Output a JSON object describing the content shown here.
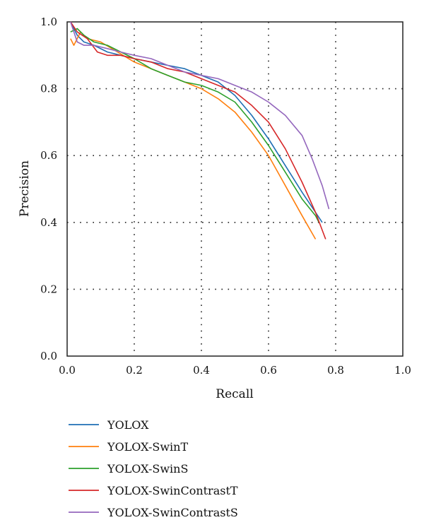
{
  "chart_data": {
    "type": "line",
    "xlabel": "Recall",
    "ylabel": "Precision",
    "xlim": [
      0.0,
      1.0
    ],
    "ylim": [
      0.0,
      1.0
    ],
    "xticks": [
      "0.0",
      "0.2",
      "0.4",
      "0.6",
      "0.8",
      "1.0"
    ],
    "yticks": [
      "0.0",
      "0.2",
      "0.4",
      "0.6",
      "0.8",
      "1.0"
    ],
    "grid": true,
    "legend_position": "bottom-left",
    "series": [
      {
        "name": "YOLOX",
        "color": "#1f6fb4",
        "x": [
          0.01,
          0.03,
          0.05,
          0.08,
          0.12,
          0.16,
          0.2,
          0.25,
          0.3,
          0.35,
          0.4,
          0.45,
          0.5,
          0.55,
          0.6,
          0.65,
          0.7,
          0.74,
          0.76
        ],
        "y": [
          1.0,
          0.96,
          0.94,
          0.93,
          0.91,
          0.9,
          0.89,
          0.88,
          0.87,
          0.86,
          0.84,
          0.82,
          0.78,
          0.72,
          0.65,
          0.57,
          0.49,
          0.43,
          0.4
        ]
      },
      {
        "name": "YOLOX-SwinT",
        "color": "#ff7f0e",
        "x": [
          0.01,
          0.02,
          0.04,
          0.06,
          0.1,
          0.15,
          0.2,
          0.25,
          0.3,
          0.35,
          0.4,
          0.45,
          0.5,
          0.55,
          0.6,
          0.65,
          0.7,
          0.74
        ],
        "y": [
          0.95,
          0.93,
          0.97,
          0.95,
          0.94,
          0.91,
          0.88,
          0.86,
          0.84,
          0.82,
          0.8,
          0.77,
          0.73,
          0.67,
          0.6,
          0.51,
          0.42,
          0.35
        ]
      },
      {
        "name": "YOLOX-SwinS",
        "color": "#2ca02c",
        "x": [
          0.01,
          0.03,
          0.05,
          0.08,
          0.12,
          0.16,
          0.2,
          0.25,
          0.3,
          0.35,
          0.4,
          0.45,
          0.5,
          0.55,
          0.6,
          0.65,
          0.7,
          0.74,
          0.75
        ],
        "y": [
          0.97,
          0.98,
          0.96,
          0.94,
          0.93,
          0.91,
          0.89,
          0.86,
          0.84,
          0.82,
          0.81,
          0.79,
          0.76,
          0.7,
          0.63,
          0.55,
          0.47,
          0.42,
          0.4
        ]
      },
      {
        "name": "YOLOX-SwinContrastT",
        "color": "#d62728",
        "x": [
          0.01,
          0.03,
          0.06,
          0.09,
          0.12,
          0.16,
          0.2,
          0.25,
          0.3,
          0.35,
          0.4,
          0.45,
          0.5,
          0.55,
          0.6,
          0.65,
          0.7,
          0.74,
          0.77
        ],
        "y": [
          1.0,
          0.97,
          0.95,
          0.91,
          0.9,
          0.9,
          0.89,
          0.88,
          0.86,
          0.85,
          0.83,
          0.81,
          0.79,
          0.75,
          0.7,
          0.62,
          0.52,
          0.43,
          0.35
        ]
      },
      {
        "name": "YOLOX-SwinContrastS",
        "color": "#9467bd",
        "x": [
          0.01,
          0.03,
          0.05,
          0.08,
          0.12,
          0.16,
          0.2,
          0.25,
          0.3,
          0.35,
          0.4,
          0.45,
          0.5,
          0.55,
          0.6,
          0.65,
          0.7,
          0.73,
          0.76,
          0.78
        ],
        "y": [
          1.0,
          0.94,
          0.93,
          0.93,
          0.92,
          0.91,
          0.9,
          0.89,
          0.87,
          0.85,
          0.84,
          0.83,
          0.81,
          0.79,
          0.76,
          0.72,
          0.66,
          0.59,
          0.51,
          0.44
        ]
      }
    ]
  }
}
